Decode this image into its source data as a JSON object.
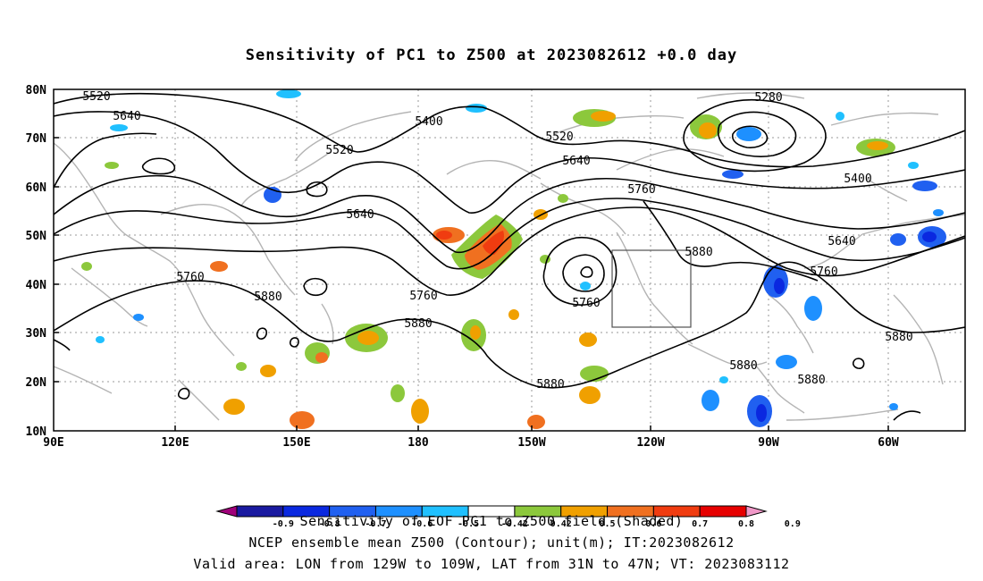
{
  "title": "Sensitivity of PC1 to Z500 at 2023082612 +0.0 day",
  "map": {
    "lat_ticks": [
      "80N",
      "70N",
      "60N",
      "50N",
      "40N",
      "30N",
      "20N",
      "10N"
    ],
    "lon_ticks": [
      "90E",
      "120E",
      "150E",
      "180",
      "150W",
      "120W",
      "90W",
      "60W"
    ],
    "lon_range": [
      "90E",
      "40W"
    ],
    "lat_range": [
      "10N",
      "80N"
    ],
    "grid": "dotted",
    "valid_box": {
      "lon": [
        "129W",
        "109W"
      ],
      "lat": [
        "31N",
        "47N"
      ]
    }
  },
  "contours": {
    "unit": "m",
    "labels": [
      "5520",
      "5640",
      "5400",
      "5520",
      "5280",
      "5520",
      "5640",
      "5400",
      "5760",
      "5640",
      "5640",
      "5760",
      "5760",
      "5880",
      "5880",
      "5760",
      "5880",
      "5880",
      "5880",
      "5880",
      "5880",
      "5760"
    ]
  },
  "colorbar": {
    "ticks": [
      "-0.9",
      "-0.8",
      "-0.7",
      "-0.6",
      "-0.5",
      "-0.42",
      "0.42",
      "0.5",
      "0.6",
      "0.7",
      "0.8",
      "0.9"
    ],
    "colors": [
      "#a0007a",
      "#1a1aa0",
      "#0a28e0",
      "#2060f0",
      "#1e90ff",
      "#20c0ff",
      "#ffffff",
      "#8cc83c",
      "#f0a000",
      "#f07020",
      "#f03c10",
      "#e60000",
      "#f098c8"
    ]
  },
  "footer": {
    "line1": "Sensitivity of EOF PC1 to Z500 field (Shaded)",
    "line2": "NCEP ensemble mean Z500 (Contour); unit(m); IT:2023082612",
    "line3": "Valid area: LON from 129W to 109W, LAT from 31N to 47N; VT: 2023083112"
  }
}
